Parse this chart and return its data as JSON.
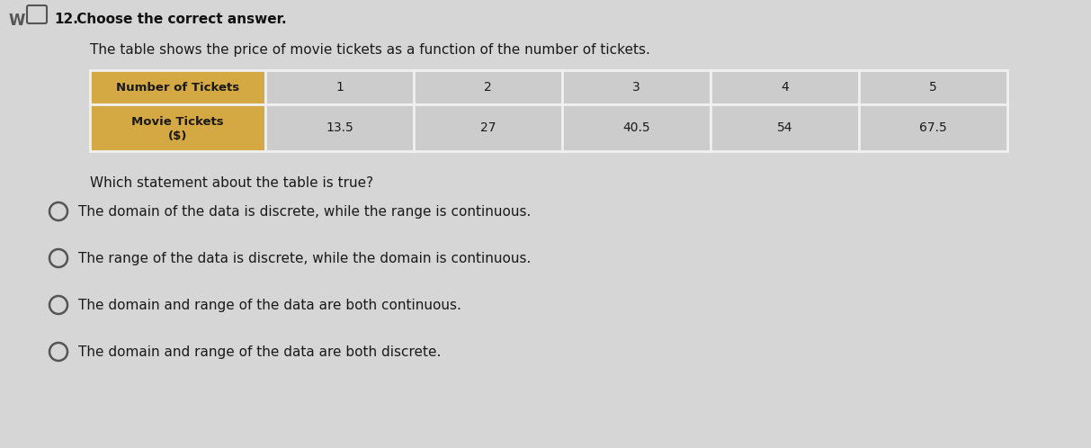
{
  "question_number": "12.",
  "question_prefix": " Choose the correct answer.",
  "question_text": "The table shows the price of movie tickets as a function of the number of tickets.",
  "table": {
    "row1_label": "Number of Tickets",
    "row2_label_line1": "Movie Tickets",
    "row2_label_line2": "($)",
    "col_values_row1": [
      "1",
      "2",
      "3",
      "4",
      "5"
    ],
    "col_values_row2": [
      "13.5",
      "27",
      "40.5",
      "54",
      "67.5"
    ],
    "header_bg_color": "#d4a843",
    "header_text_color": "#1a1a1a",
    "cell_bg_color": "#cccccc",
    "cell_text_color": "#1a1a1a",
    "border_color": "#f0f0f0"
  },
  "sub_question": "Which statement about the table is true?",
  "options": [
    "The domain of the data is discrete, while the range is continuous.",
    "The range of the data is discrete, while the domain is continuous.",
    "The domain and range of the data are both continuous.",
    "The domain and range of the data are both discrete."
  ],
  "bg_color": "#d6d6d6",
  "text_color": "#1a1a1a",
  "bold_color": "#111111",
  "font_size_header": 11,
  "font_size_question": 11,
  "font_size_table_header": 9.5,
  "font_size_table_data": 10,
  "font_size_options": 11
}
